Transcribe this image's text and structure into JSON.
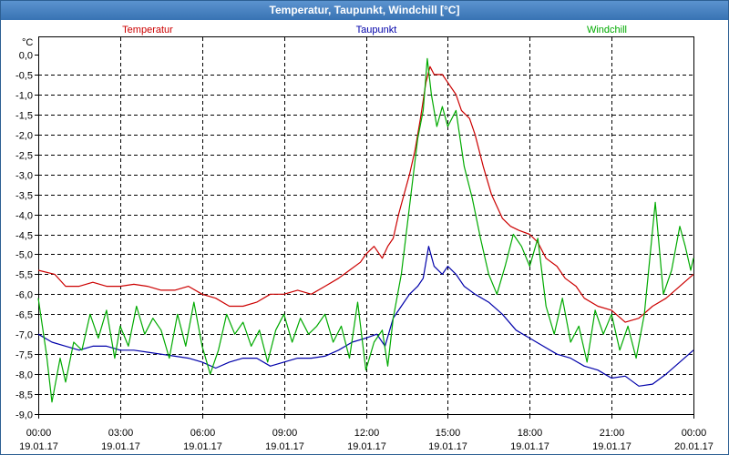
{
  "window": {
    "title": "Temperatur, Taupunkt, Windchill [°C]"
  },
  "colors": {
    "temperatur": "#cc0000",
    "taupunkt": "#0000aa",
    "windchill": "#00aa00",
    "grid": "#000000"
  },
  "chart_data": {
    "type": "line",
    "title": "Temperatur, Taupunkt, Windchill [°C]",
    "ylabel": "°C",
    "xlabel": "",
    "ylim": [
      -9.0,
      0.0
    ],
    "xlim": [
      0,
      24
    ],
    "yticks": [
      "0,0",
      "-0,5",
      "-1,0",
      "-1,5",
      "-2,0",
      "-2,5",
      "-3,0",
      "-3,5",
      "-4,0",
      "-4,5",
      "-5,0",
      "-5,5",
      "-6,0",
      "-6,5",
      "-7,0",
      "-7,5",
      "-8,0",
      "-8,5",
      "-9,0"
    ],
    "ytick_values": [
      0,
      -0.5,
      -1,
      -1.5,
      -2,
      -2.5,
      -3,
      -3.5,
      -4,
      -4.5,
      -5,
      -5.5,
      -6,
      -6.5,
      -7,
      -7.5,
      -8,
      -8.5,
      -9
    ],
    "xticks": [
      {
        "time": "00:00",
        "date": "19.01.17",
        "hour": 0
      },
      {
        "time": "03:00",
        "date": "19.01.17",
        "hour": 3
      },
      {
        "time": "06:00",
        "date": "19.01.17",
        "hour": 6
      },
      {
        "time": "09:00",
        "date": "19.01.17",
        "hour": 9
      },
      {
        "time": "12:00",
        "date": "19.01.17",
        "hour": 12
      },
      {
        "time": "15:00",
        "date": "19.01.17",
        "hour": 15
      },
      {
        "time": "18:00",
        "date": "19.01.17",
        "hour": 18
      },
      {
        "time": "21:00",
        "date": "19.01.17",
        "hour": 21
      },
      {
        "time": "00:00",
        "date": "20.01.17",
        "hour": 24
      }
    ],
    "legend": [
      "Temperatur",
      "Taupunkt",
      "Windchill"
    ],
    "series": [
      {
        "name": "Temperatur",
        "color": "#cc0000",
        "points": [
          [
            0,
            -5.4
          ],
          [
            0.6,
            -5.5
          ],
          [
            1,
            -5.8
          ],
          [
            1.5,
            -5.8
          ],
          [
            2,
            -5.7
          ],
          [
            2.5,
            -5.8
          ],
          [
            3,
            -5.8
          ],
          [
            3.5,
            -5.75
          ],
          [
            4,
            -5.8
          ],
          [
            4.5,
            -5.9
          ],
          [
            5,
            -5.9
          ],
          [
            5.5,
            -5.8
          ],
          [
            6,
            -6.0
          ],
          [
            6.5,
            -6.1
          ],
          [
            7,
            -6.3
          ],
          [
            7.5,
            -6.3
          ],
          [
            8,
            -6.2
          ],
          [
            8.5,
            -6.0
          ],
          [
            9,
            -6.0
          ],
          [
            9.5,
            -5.9
          ],
          [
            10,
            -6.0
          ],
          [
            10.5,
            -5.8
          ],
          [
            11,
            -5.6
          ],
          [
            11.4,
            -5.4
          ],
          [
            11.8,
            -5.2
          ],
          [
            12,
            -5.0
          ],
          [
            12.3,
            -4.8
          ],
          [
            12.6,
            -5.1
          ],
          [
            12.8,
            -4.8
          ],
          [
            13,
            -4.6
          ],
          [
            13.2,
            -4.0
          ],
          [
            13.4,
            -3.5
          ],
          [
            13.6,
            -3.0
          ],
          [
            13.8,
            -2.4
          ],
          [
            14,
            -1.6
          ],
          [
            14.2,
            -0.7
          ],
          [
            14.35,
            -0.3
          ],
          [
            14.5,
            -0.5
          ],
          [
            14.8,
            -0.5
          ],
          [
            15,
            -0.7
          ],
          [
            15.3,
            -1.0
          ],
          [
            15.5,
            -1.4
          ],
          [
            15.8,
            -1.6
          ],
          [
            16,
            -2.0
          ],
          [
            16.3,
            -2.8
          ],
          [
            16.6,
            -3.5
          ],
          [
            17,
            -4.1
          ],
          [
            17.3,
            -4.3
          ],
          [
            17.6,
            -4.4
          ],
          [
            18,
            -4.5
          ],
          [
            18.3,
            -4.7
          ],
          [
            18.6,
            -5.1
          ],
          [
            19,
            -5.3
          ],
          [
            19.3,
            -5.6
          ],
          [
            19.7,
            -5.8
          ],
          [
            20,
            -6.1
          ],
          [
            20.5,
            -6.3
          ],
          [
            21,
            -6.4
          ],
          [
            21.5,
            -6.7
          ],
          [
            22,
            -6.6
          ],
          [
            22.5,
            -6.3
          ],
          [
            23,
            -6.1
          ],
          [
            23.5,
            -5.8
          ],
          [
            24,
            -5.5
          ]
        ]
      },
      {
        "name": "Taupunkt",
        "color": "#0000aa",
        "points": [
          [
            0,
            -7.0
          ],
          [
            0.5,
            -7.2
          ],
          [
            1,
            -7.3
          ],
          [
            1.5,
            -7.4
          ],
          [
            2,
            -7.3
          ],
          [
            2.5,
            -7.3
          ],
          [
            3,
            -7.4
          ],
          [
            3.5,
            -7.4
          ],
          [
            4,
            -7.45
          ],
          [
            4.5,
            -7.5
          ],
          [
            5,
            -7.55
          ],
          [
            5.5,
            -7.6
          ],
          [
            6,
            -7.7
          ],
          [
            6.5,
            -7.85
          ],
          [
            7,
            -7.7
          ],
          [
            7.5,
            -7.6
          ],
          [
            8,
            -7.6
          ],
          [
            8.5,
            -7.8
          ],
          [
            9,
            -7.7
          ],
          [
            9.5,
            -7.6
          ],
          [
            10,
            -7.6
          ],
          [
            10.5,
            -7.55
          ],
          [
            11,
            -7.4
          ],
          [
            11.5,
            -7.2
          ],
          [
            12,
            -7.1
          ],
          [
            12.4,
            -7.0
          ],
          [
            12.7,
            -7.3
          ],
          [
            13,
            -6.6
          ],
          [
            13.3,
            -6.3
          ],
          [
            13.6,
            -6.0
          ],
          [
            13.9,
            -5.8
          ],
          [
            14.1,
            -5.6
          ],
          [
            14.2,
            -5.2
          ],
          [
            14.3,
            -4.8
          ],
          [
            14.5,
            -5.3
          ],
          [
            14.8,
            -5.5
          ],
          [
            15,
            -5.3
          ],
          [
            15.3,
            -5.5
          ],
          [
            15.6,
            -5.8
          ],
          [
            16,
            -6.0
          ],
          [
            16.5,
            -6.2
          ],
          [
            17,
            -6.5
          ],
          [
            17.5,
            -6.9
          ],
          [
            18,
            -7.1
          ],
          [
            18.5,
            -7.3
          ],
          [
            19,
            -7.5
          ],
          [
            19.5,
            -7.6
          ],
          [
            20,
            -7.8
          ],
          [
            20.5,
            -7.9
          ],
          [
            21,
            -8.1
          ],
          [
            21.5,
            -8.05
          ],
          [
            22,
            -8.3
          ],
          [
            22.5,
            -8.25
          ],
          [
            23,
            -8.0
          ],
          [
            23.5,
            -7.7
          ],
          [
            24,
            -7.4
          ]
        ]
      },
      {
        "name": "Windchill",
        "color": "#00aa00",
        "points": [
          [
            0,
            -6.1
          ],
          [
            0.3,
            -7.5
          ],
          [
            0.5,
            -8.7
          ],
          [
            0.8,
            -7.6
          ],
          [
            1,
            -8.2
          ],
          [
            1.3,
            -7.2
          ],
          [
            1.6,
            -7.4
          ],
          [
            1.9,
            -6.5
          ],
          [
            2.2,
            -7.1
          ],
          [
            2.5,
            -6.4
          ],
          [
            2.8,
            -7.6
          ],
          [
            3,
            -6.8
          ],
          [
            3.3,
            -7.3
          ],
          [
            3.6,
            -6.3
          ],
          [
            3.9,
            -7.0
          ],
          [
            4.2,
            -6.6
          ],
          [
            4.5,
            -6.9
          ],
          [
            4.8,
            -7.6
          ],
          [
            5.1,
            -6.5
          ],
          [
            5.4,
            -7.3
          ],
          [
            5.7,
            -6.2
          ],
          [
            6,
            -7.3
          ],
          [
            6.3,
            -8.0
          ],
          [
            6.6,
            -7.4
          ],
          [
            6.9,
            -6.5
          ],
          [
            7.2,
            -7.0
          ],
          [
            7.5,
            -6.7
          ],
          [
            7.8,
            -7.3
          ],
          [
            8.1,
            -6.9
          ],
          [
            8.4,
            -7.7
          ],
          [
            8.7,
            -6.9
          ],
          [
            9,
            -6.5
          ],
          [
            9.3,
            -7.2
          ],
          [
            9.6,
            -6.6
          ],
          [
            9.9,
            -7.0
          ],
          [
            10.2,
            -6.8
          ],
          [
            10.5,
            -6.5
          ],
          [
            10.8,
            -7.2
          ],
          [
            11.1,
            -6.8
          ],
          [
            11.4,
            -7.6
          ],
          [
            11.7,
            -6.2
          ],
          [
            12,
            -7.9
          ],
          [
            12.3,
            -7.2
          ],
          [
            12.6,
            -6.9
          ],
          [
            12.8,
            -7.8
          ],
          [
            13,
            -6.6
          ],
          [
            13.3,
            -5.5
          ],
          [
            13.6,
            -3.8
          ],
          [
            13.9,
            -2.1
          ],
          [
            14.1,
            -1.4
          ],
          [
            14.25,
            -0.1
          ],
          [
            14.4,
            -1.0
          ],
          [
            14.6,
            -1.8
          ],
          [
            14.8,
            -1.3
          ],
          [
            15,
            -1.8
          ],
          [
            15.3,
            -1.4
          ],
          [
            15.6,
            -2.8
          ],
          [
            15.9,
            -3.6
          ],
          [
            16.2,
            -4.6
          ],
          [
            16.5,
            -5.5
          ],
          [
            16.8,
            -6.0
          ],
          [
            17.1,
            -5.3
          ],
          [
            17.4,
            -4.5
          ],
          [
            17.7,
            -4.8
          ],
          [
            18,
            -5.3
          ],
          [
            18.3,
            -4.6
          ],
          [
            18.6,
            -6.3
          ],
          [
            18.9,
            -7.0
          ],
          [
            19.2,
            -6.1
          ],
          [
            19.5,
            -7.2
          ],
          [
            19.8,
            -6.8
          ],
          [
            20.1,
            -7.7
          ],
          [
            20.4,
            -6.4
          ],
          [
            20.7,
            -7.0
          ],
          [
            21,
            -6.5
          ],
          [
            21.3,
            -7.4
          ],
          [
            21.6,
            -6.8
          ],
          [
            21.9,
            -7.6
          ],
          [
            22.2,
            -6.5
          ],
          [
            22.6,
            -3.7
          ],
          [
            22.9,
            -6.0
          ],
          [
            23.2,
            -5.4
          ],
          [
            23.5,
            -4.3
          ],
          [
            23.7,
            -4.8
          ],
          [
            23.9,
            -5.4
          ],
          [
            24,
            -5.1
          ]
        ]
      }
    ]
  }
}
